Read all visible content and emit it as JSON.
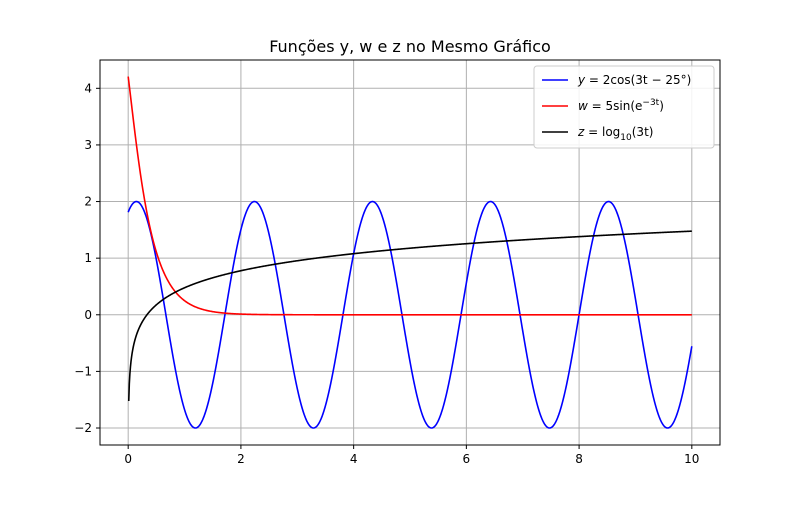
{
  "chart_data": {
    "type": "line",
    "title": "Funções y, w e z no Mesmo Gráfico",
    "xlabel": "",
    "ylabel": "",
    "xlim": [
      -0.5,
      10.5
    ],
    "ylim": [
      -2.3,
      4.5
    ],
    "x_ticks": [
      0,
      2,
      4,
      6,
      8,
      10
    ],
    "x_tick_labels": [
      "0",
      "2",
      "4",
      "6",
      "8",
      "10"
    ],
    "y_ticks": [
      -2,
      -1,
      0,
      1,
      2,
      3,
      4
    ],
    "y_tick_labels": [
      "−2",
      "−1",
      "0",
      "1",
      "2",
      "3",
      "4"
    ],
    "grid": true,
    "legend_position": "upper-right",
    "x_range": [
      0,
      10
    ],
    "series": [
      {
        "name": "y = 2cos(3t − 25°)",
        "function": "y",
        "color": "#0000ff",
        "formula": {
          "amplitude": 2,
          "frequency": 3,
          "phase_deg": -25
        }
      },
      {
        "name": "w = 5sin(e^(−3t))",
        "function": "w",
        "color": "#ff0000",
        "formula": {
          "amplitude": 5,
          "decay": -3
        }
      },
      {
        "name": "z = log10(3t)",
        "function": "z",
        "color": "#000000",
        "formula": {
          "scale": 3
        }
      }
    ],
    "legend": [
      {
        "label_prefix": "y",
        "label_expr": " = 2cos(3t − 25°)",
        "color": "#0000ff"
      },
      {
        "label_prefix": "w",
        "label_expr": " = 5sin(e",
        "label_sup": "−3t",
        "label_tail": ")",
        "color": "#ff0000"
      },
      {
        "label_prefix": "z",
        "label_expr": " = log",
        "label_sub": "10",
        "label_tail": "(3t)",
        "color": "#000000"
      }
    ]
  }
}
